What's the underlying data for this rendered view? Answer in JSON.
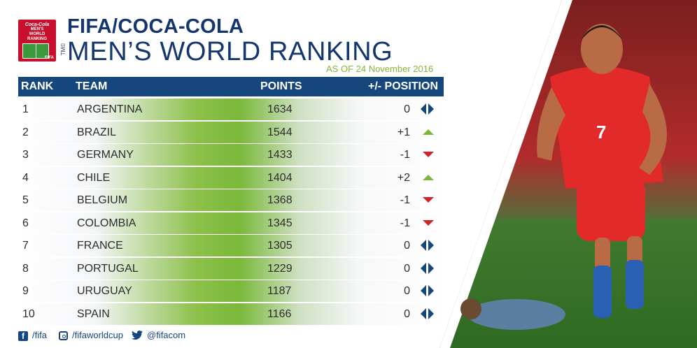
{
  "header": {
    "logo_lines": [
      "Coca-Cola",
      "MEN'S",
      "WORLD",
      "RANKING"
    ],
    "logo_fifa": "FIFA",
    "tm": "TM©",
    "title_line1": "FIFA/COCA-COLA",
    "title_line2": "MEN’S WORLD RANKING",
    "as_of": "AS OF 24 November 2016"
  },
  "table": {
    "columns": [
      "RANK",
      "TEAM",
      "POINTS",
      "+/- POSITION"
    ],
    "rows": [
      {
        "rank": "1",
        "team": "ARGENTINA",
        "points": "1634",
        "change": "0",
        "trend": "same"
      },
      {
        "rank": "2",
        "team": "BRAZIL",
        "points": "1544",
        "change": "+1",
        "trend": "up"
      },
      {
        "rank": "3",
        "team": "GERMANY",
        "points": "1433",
        "change": "-1",
        "trend": "down"
      },
      {
        "rank": "4",
        "team": "CHILE",
        "points": "1404",
        "change": "+2",
        "trend": "up"
      },
      {
        "rank": "5",
        "team": "BELGIUM",
        "points": "1368",
        "change": "-1",
        "trend": "down"
      },
      {
        "rank": "6",
        "team": "COLOMBIA",
        "points": "1345",
        "change": "-1",
        "trend": "down"
      },
      {
        "rank": "7",
        "team": "FRANCE",
        "points": "1305",
        "change": "0",
        "trend": "same"
      },
      {
        "rank": "8",
        "team": "PORTUGAL",
        "points": "1229",
        "change": "0",
        "trend": "same"
      },
      {
        "rank": "9",
        "team": "URUGUAY",
        "points": "1187",
        "change": "0",
        "trend": "same"
      },
      {
        "rank": "10",
        "team": "SPAIN",
        "points": "1166",
        "change": "0",
        "trend": "same"
      }
    ]
  },
  "social": {
    "facebook": "/fifa",
    "instagram": "/fifaworldcup",
    "twitter": "@fifacom"
  },
  "colors": {
    "navy": "#15477d",
    "green": "#7ab83a",
    "red": "#d0232a",
    "title_blue": "#14366c"
  },
  "photo": {
    "shirt_number": "7"
  }
}
